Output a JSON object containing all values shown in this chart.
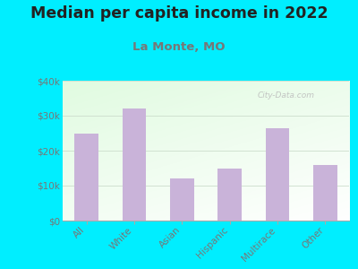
{
  "title": "Median per capita income in 2022",
  "subtitle": "La Monte, MO",
  "categories": [
    "All",
    "White",
    "Asian",
    "Hispanic",
    "Multirace",
    "Other"
  ],
  "values": [
    25000,
    32000,
    12000,
    15000,
    26500,
    16000
  ],
  "bar_color": "#c9b3d9",
  "background_outer": "#00eeff",
  "title_color": "#222222",
  "subtitle_color": "#777777",
  "axis_label_color": "#777777",
  "ylim": [
    0,
    40000
  ],
  "yticks": [
    0,
    10000,
    20000,
    30000,
    40000
  ],
  "ytick_labels": [
    "$0",
    "$10k",
    "$20k",
    "$30k",
    "$40k"
  ],
  "watermark_text": "City-Data.com",
  "title_fontsize": 12.5,
  "subtitle_fontsize": 9.5,
  "tick_fontsize": 7.5
}
